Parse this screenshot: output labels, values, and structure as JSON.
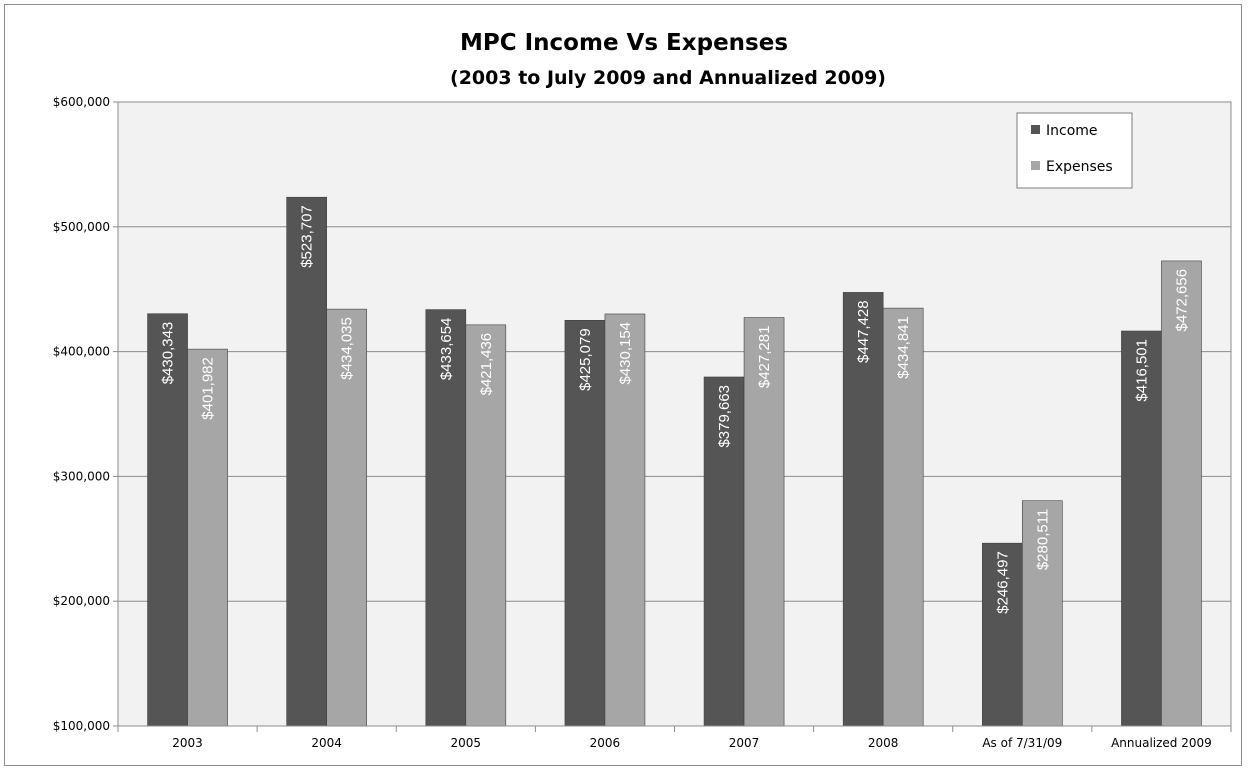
{
  "chart_data": {
    "type": "bar",
    "title": "MPC Income Vs Expenses",
    "subtitle": "(2003 to July 2009 and Annualized  2009)",
    "categories": [
      "2003",
      "2004",
      "2005",
      "2006",
      "2007",
      "2008",
      "As of 7/31/09",
      "Annualized 2009"
    ],
    "series": [
      {
        "name": "Income",
        "color": "#555555",
        "values": [
          430343,
          523707,
          433654,
          425079,
          379663,
          447428,
          246497,
          416501
        ],
        "labels": [
          "$430,343",
          "$523,707",
          "$433,654",
          "$425,079",
          "$379,663",
          "$447,428",
          "$246,497",
          "$416,501"
        ]
      },
      {
        "name": "Expenses",
        "color": "#a6a6a6",
        "values": [
          401982,
          434035,
          421436,
          430154,
          427281,
          434841,
          280511,
          472656
        ],
        "labels": [
          "$401,982",
          "$434,035",
          "$421,436",
          "$430,154",
          "$427,281",
          "$434,841",
          "$280,511",
          "$472,656"
        ]
      }
    ],
    "ylim": [
      100000,
      600000
    ],
    "yticks": [
      100000,
      200000,
      300000,
      400000,
      500000,
      600000
    ],
    "ytick_labels": [
      "$100,000",
      "$200,000",
      "$300,000",
      "$400,000",
      "$500,000",
      "$600,000"
    ],
    "xlabel": "",
    "ylabel": "",
    "grid": true,
    "legend_position": "top-right",
    "plot_background": "#f2f2f2"
  }
}
